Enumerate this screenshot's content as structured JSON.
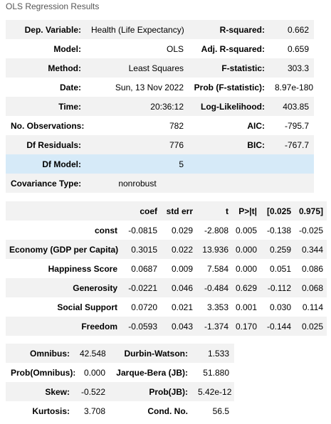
{
  "caption": "OLS Regression Results",
  "summary": [
    {
      "label": "Dep. Variable:",
      "value": "Health (Life Expectancy)",
      "label2": "R-squared:",
      "value2": "0.662"
    },
    {
      "label": "Model:",
      "value": "OLS",
      "label2": "Adj. R-squared:",
      "value2": "0.659"
    },
    {
      "label": "Method:",
      "value": "Least Squares",
      "label2": "F-statistic:",
      "value2": "303.3"
    },
    {
      "label": "Date:",
      "value": "Sun, 13 Nov 2022",
      "label2": "Prob (F-statistic):",
      "value2": "8.97e-180"
    },
    {
      "label": "Time:",
      "value": "20:36:12",
      "label2": "Log-Likelihood:",
      "value2": "403.85"
    },
    {
      "label": "No. Observations:",
      "value": "782",
      "label2": "AIC:",
      "value2": "-795.7"
    },
    {
      "label": "Df Residuals:",
      "value": "776",
      "label2": "BIC:",
      "value2": "-767.7"
    },
    {
      "label": "Df Model:",
      "value": "5",
      "label2": "",
      "value2": ""
    },
    {
      "label": "Covariance Type:",
      "value": "nonrobust",
      "label2": "",
      "value2": ""
    }
  ],
  "coefficients": {
    "headers": [
      "coef",
      "std err",
      "t",
      "P>|t|",
      "[0.025",
      "0.975]"
    ],
    "rows": [
      {
        "name": "const",
        "values": [
          "-0.0815",
          "0.029",
          "-2.808",
          "0.005",
          "-0.138",
          "-0.025"
        ]
      },
      {
        "name": "Economy (GDP per Capita)",
        "values": [
          "0.3015",
          "0.022",
          "13.936",
          "0.000",
          "0.259",
          "0.344"
        ]
      },
      {
        "name": "Happiness Score",
        "values": [
          "0.0687",
          "0.009",
          "7.584",
          "0.000",
          "0.051",
          "0.086"
        ]
      },
      {
        "name": "Generosity",
        "values": [
          "-0.0221",
          "0.046",
          "-0.484",
          "0.629",
          "-0.112",
          "0.068"
        ]
      },
      {
        "name": "Social Support",
        "values": [
          "0.0720",
          "0.021",
          "3.353",
          "0.001",
          "0.030",
          "0.114"
        ]
      },
      {
        "name": "Freedom",
        "values": [
          "-0.0593",
          "0.043",
          "-1.374",
          "0.170",
          "-0.144",
          "0.025"
        ]
      }
    ]
  },
  "diagnostics": [
    {
      "label": "Omnibus:",
      "value": "42.548",
      "label2": "Durbin-Watson:",
      "value2": "1.533"
    },
    {
      "label": "Prob(Omnibus):",
      "value": "0.000",
      "label2": "Jarque-Bera (JB):",
      "value2": "51.880"
    },
    {
      "label": "Skew:",
      "value": "-0.522",
      "label2": "Prob(JB):",
      "value2": "5.42e-12"
    },
    {
      "label": "Kurtosis:",
      "value": "3.708",
      "label2": "Cond. No.",
      "value2": "56.5"
    }
  ],
  "colors": {
    "row_odd": "#f2f2f2",
    "row_even": "#ffffff",
    "row_highlight": "#d6eaf8",
    "caption": "#555555"
  }
}
